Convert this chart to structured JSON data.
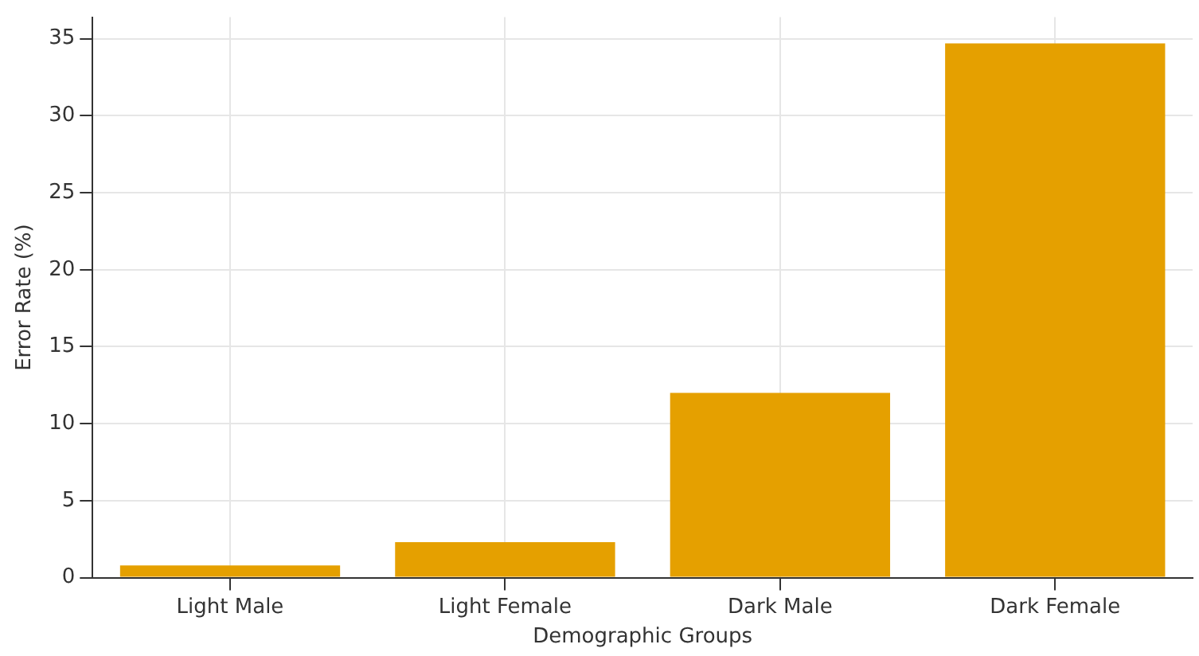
{
  "chart_data": {
    "type": "bar",
    "xlabel": "Demographic Groups",
    "ylabel": "Error Rate (%)",
    "categories": [
      "Light Male",
      "Light Female",
      "Dark Male",
      "Dark Female"
    ],
    "values": [
      0.8,
      2.3,
      12.0,
      34.7
    ],
    "color": "#e5a000",
    "ylim": [
      0,
      36.4
    ],
    "yticks": [
      0,
      5,
      10,
      15,
      20,
      25,
      30,
      35
    ],
    "grid": true
  }
}
